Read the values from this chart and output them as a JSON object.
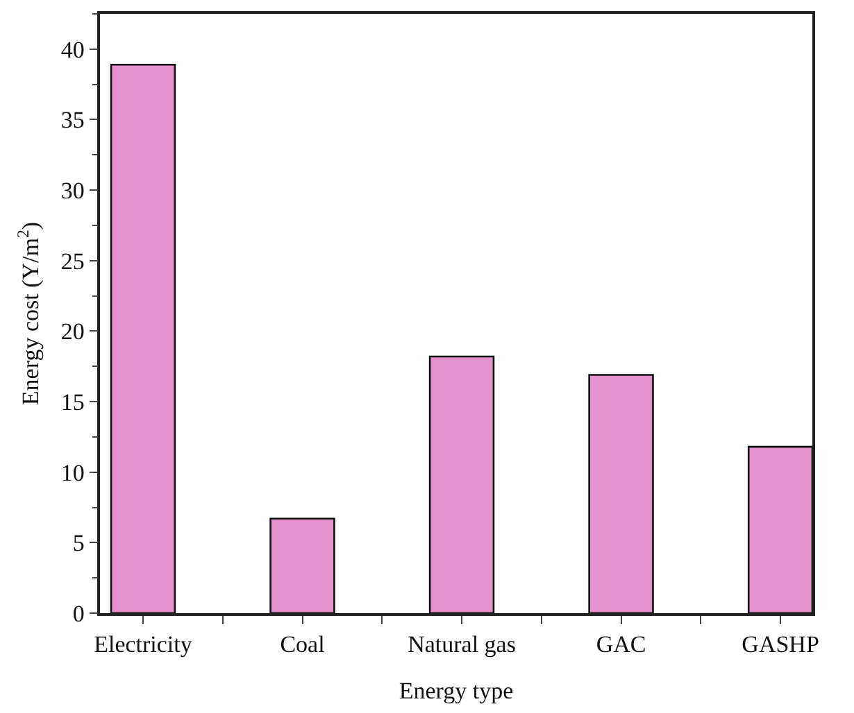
{
  "chart_data": {
    "type": "bar",
    "xlabel": "Energy type",
    "ylabel": "Energy cost (Y/m$^{2}$)",
    "categories": [
      "Electricity",
      "Coal",
      "Natural gas",
      "GAC",
      "GASHP"
    ],
    "values": [
      38.9,
      6.7,
      18.2,
      16.9,
      11.8
    ],
    "color": "#e291cc",
    "ylim": [
      0,
      42.5
    ],
    "yticks": [
      0,
      5,
      10,
      15,
      20,
      25,
      30,
      35,
      40
    ],
    "grid": false
  }
}
